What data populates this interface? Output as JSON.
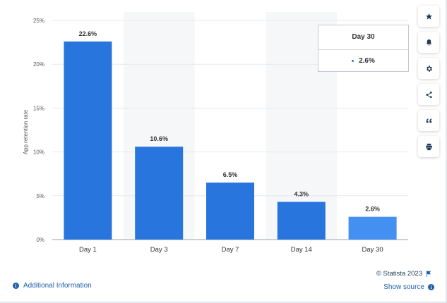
{
  "chart_data": {
    "type": "bar",
    "categories": [
      "Day 1",
      "Day 3",
      "Day 7",
      "Day 14",
      "Day 30"
    ],
    "values": [
      22.6,
      10.6,
      6.5,
      4.3,
      2.6
    ],
    "value_labels": [
      "22.6%",
      "10.6%",
      "6.5%",
      "4.3%",
      "2.6%"
    ],
    "ylabel": "App retention rate",
    "ylim": [
      0,
      25
    ],
    "yticks": [
      0,
      5,
      10,
      15,
      20,
      25
    ],
    "ytick_labels": [
      "0%",
      "5%",
      "10%",
      "15%",
      "20%",
      "25%"
    ],
    "grid": true,
    "bar_color": "#2876dd",
    "highlight_color": "#4390f2",
    "highlight_index": 4,
    "band_color": "#f6f7f9"
  },
  "tooltip": {
    "title": "Day 30",
    "value": "2.6%"
  },
  "toolbar": {
    "buttons": [
      "star-icon",
      "bell-icon",
      "gear-icon",
      "share-icon",
      "quote-icon",
      "print-icon"
    ]
  },
  "footer": {
    "additional_info": "Additional Information",
    "copyright": "© Statista 2023",
    "show_source": "Show source"
  }
}
